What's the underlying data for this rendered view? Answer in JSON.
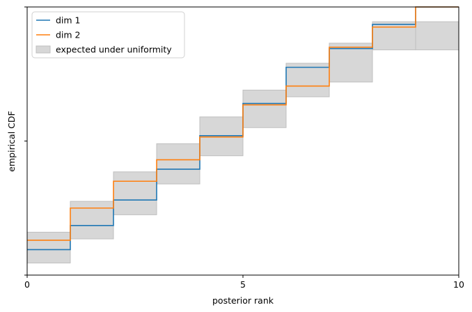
{
  "chart_data": {
    "type": "line",
    "title": "",
    "xlabel": "posterior rank",
    "ylabel": "empirical CDF",
    "xlim": [
      0,
      10
    ],
    "ylim": [
      0,
      1
    ],
    "xticks": [
      0,
      5,
      10
    ],
    "xtick_labels": [
      "0",
      "5",
      "10"
    ],
    "yticks": [
      0,
      0.5,
      1
    ],
    "ytick_labels": [
      "",
      "",
      ""
    ],
    "grid": false,
    "legend_position": "upper-left",
    "step": "post",
    "band": {
      "name": "expected under uniformity",
      "color": "#bfbfbf",
      "x": [
        0,
        1,
        2,
        3,
        4,
        5,
        6,
        7,
        8,
        9
      ],
      "lower": [
        0.045,
        0.135,
        0.225,
        0.34,
        0.445,
        0.55,
        0.665,
        0.72,
        0.84,
        0.84
      ],
      "upper": [
        0.16,
        0.275,
        0.385,
        0.49,
        0.59,
        0.69,
        0.79,
        0.865,
        0.945,
        0.945
      ]
    },
    "series": [
      {
        "name": "dim 1",
        "color": "#1f77b4",
        "x": [
          0,
          1,
          2,
          3,
          4,
          5,
          6,
          7,
          8,
          9,
          10
        ],
        "y": [
          0.095,
          0.185,
          0.28,
          0.395,
          0.52,
          0.64,
          0.775,
          0.845,
          0.935,
          1.0,
          1.0
        ]
      },
      {
        "name": "dim 2",
        "color": "#ff7f0e",
        "x": [
          0,
          1,
          2,
          3,
          4,
          5,
          6,
          7,
          8,
          9,
          10
        ],
        "y": [
          0.13,
          0.25,
          0.35,
          0.43,
          0.515,
          0.635,
          0.705,
          0.85,
          0.925,
          1.0,
          1.0
        ]
      }
    ]
  }
}
